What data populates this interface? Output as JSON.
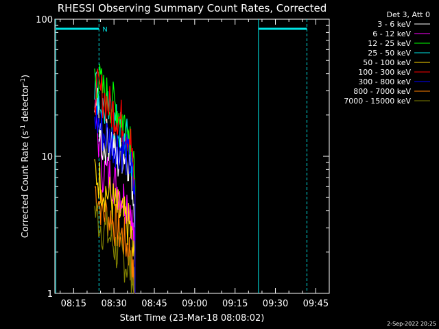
{
  "colors": {
    "background": "#000000",
    "foreground": "#ffffff",
    "marker": "#00e5e5"
  },
  "chart_data": {
    "type": "line",
    "title": "RHESSI Observing Summary Count Rates, Corrected",
    "xlabel": "Start Time (23-Mar-18 08:08:02)",
    "ylabel_parts": {
      "base": "Corrected Count Rate (s",
      "exp1": "-1",
      "mid": " detector",
      "exp2": "-1",
      "end": ")"
    },
    "yscale": "log",
    "xlim": [
      "08:08:02",
      "09:50:00"
    ],
    "ylim": [
      1,
      100
    ],
    "x_ticks": [
      "08:15",
      "08:30",
      "08:45",
      "09:00",
      "09:15",
      "09:30",
      "09:45"
    ],
    "y_ticks": [
      {
        "value": 1,
        "label": "1"
      },
      {
        "value": 10,
        "label": "10"
      },
      {
        "value": 100,
        "label": "100"
      }
    ],
    "legend_header": "Det 3, Att 0",
    "legend_position": "right",
    "series": [
      {
        "name": "3 - 6 keV",
        "color": "#ffffff",
        "values": [
          [
            8.38,
            30
          ],
          [
            8.43,
            12
          ],
          [
            8.48,
            14
          ],
          [
            8.52,
            9
          ],
          [
            8.56,
            11
          ],
          [
            8.6,
            9
          ],
          [
            8.63,
            4
          ]
        ]
      },
      {
        "name": "6 - 12 keV",
        "color": "#ff00ff",
        "values": [
          [
            8.38,
            22
          ],
          [
            8.43,
            8
          ],
          [
            8.48,
            7
          ],
          [
            8.52,
            6
          ],
          [
            8.56,
            5
          ],
          [
            8.6,
            4.5
          ],
          [
            8.63,
            2
          ]
        ]
      },
      {
        "name": "12 - 25 keV",
        "color": "#00ff00",
        "values": [
          [
            8.38,
            40
          ],
          [
            8.43,
            30
          ],
          [
            8.48,
            25
          ],
          [
            8.52,
            22
          ],
          [
            8.56,
            18
          ],
          [
            8.6,
            15
          ],
          [
            8.63,
            6
          ]
        ]
      },
      {
        "name": "25 - 50 keV",
        "color": "#00e5e5",
        "values": [
          [
            8.38,
            35
          ],
          [
            8.43,
            22
          ],
          [
            8.48,
            20
          ],
          [
            8.52,
            16
          ],
          [
            8.56,
            14
          ],
          [
            8.6,
            12
          ],
          [
            8.63,
            5
          ]
        ]
      },
      {
        "name": "50 - 100 keV",
        "color": "#ffd700",
        "values": [
          [
            8.38,
            8
          ],
          [
            8.43,
            6
          ],
          [
            8.48,
            5
          ],
          [
            8.52,
            4
          ],
          [
            8.56,
            3.5
          ],
          [
            8.6,
            3
          ],
          [
            8.63,
            1.5
          ]
        ]
      },
      {
        "name": "100 - 300 keV",
        "color": "#ff0000",
        "values": [
          [
            8.38,
            30
          ],
          [
            8.43,
            28
          ],
          [
            8.48,
            22
          ],
          [
            8.52,
            20
          ],
          [
            8.56,
            17
          ],
          [
            8.6,
            14
          ],
          [
            8.63,
            5
          ]
        ]
      },
      {
        "name": "300 - 800 keV",
        "color": "#0000ff",
        "values": [
          [
            8.38,
            20
          ],
          [
            8.43,
            15
          ],
          [
            8.48,
            13
          ],
          [
            8.52,
            12
          ],
          [
            8.56,
            11
          ],
          [
            8.6,
            9
          ],
          [
            8.63,
            5
          ]
        ]
      },
      {
        "name": "800 - 7000 keV",
        "color": "#ff8000",
        "values": [
          [
            8.38,
            6
          ],
          [
            8.43,
            4
          ],
          [
            8.48,
            3.5
          ],
          [
            8.52,
            3
          ],
          [
            8.56,
            2.5
          ],
          [
            8.6,
            2
          ],
          [
            8.63,
            1
          ]
        ]
      },
      {
        "name": "7000 - 15000 keV",
        "color": "#808000",
        "values": [
          [
            8.38,
            4
          ],
          [
            8.43,
            3
          ],
          [
            8.48,
            2.5
          ],
          [
            8.52,
            2
          ],
          [
            8.56,
            1.8
          ],
          [
            8.6,
            1.5
          ],
          [
            8.63,
            1
          ]
        ]
      }
    ],
    "time_markers": [
      {
        "time": 8.14,
        "style": "solid"
      },
      {
        "time": 8.407,
        "style": "dashed"
      },
      {
        "time": 9.395,
        "style": "solid"
      },
      {
        "time": 9.695,
        "style": "dashed"
      }
    ],
    "time_bars": [
      {
        "start": 8.14,
        "end": 8.407,
        "label": "N"
      },
      {
        "start": 9.395,
        "end": 9.695,
        "label": ""
      }
    ]
  },
  "footer": {
    "date": "2-Sep-2022 20:25"
  }
}
